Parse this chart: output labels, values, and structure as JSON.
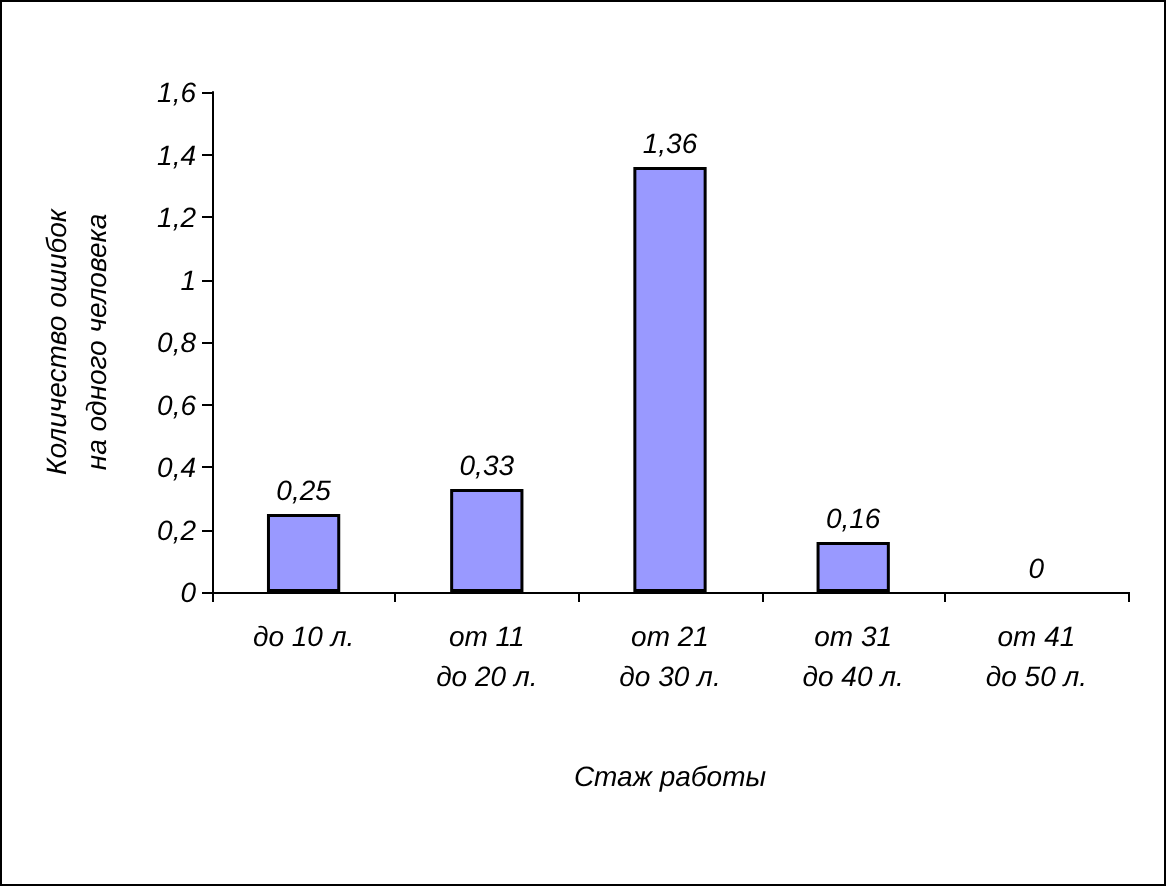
{
  "chart_data": {
    "type": "bar",
    "xlabel": "Стаж работы",
    "ylabel": "Количество ошибок\nна одного человека",
    "categories": [
      "до 10 л.",
      "от 11\nдо 20 л.",
      "от 21\nдо 30 л.",
      "от 31\nдо 40 л.",
      "от 41\nдо 50 л."
    ],
    "values": [
      0.25,
      0.33,
      1.36,
      0.16,
      0
    ],
    "value_labels": [
      "0,25",
      "0,33",
      "1,36",
      "0,16",
      "0"
    ],
    "color": "#9999ff",
    "ylim": [
      0,
      1.6
    ],
    "yticks": [
      {
        "value": 0,
        "label": "0"
      },
      {
        "value": 0.2,
        "label": "0,2"
      },
      {
        "value": 0.4,
        "label": "0,4"
      },
      {
        "value": 0.6,
        "label": "0,6"
      },
      {
        "value": 0.8,
        "label": "0,8"
      },
      {
        "value": 1,
        "label": "1"
      },
      {
        "value": 1.2,
        "label": "1,2"
      },
      {
        "value": 1.4,
        "label": "1,4"
      },
      {
        "value": 1.6,
        "label": "1,6"
      }
    ],
    "grid": false
  }
}
